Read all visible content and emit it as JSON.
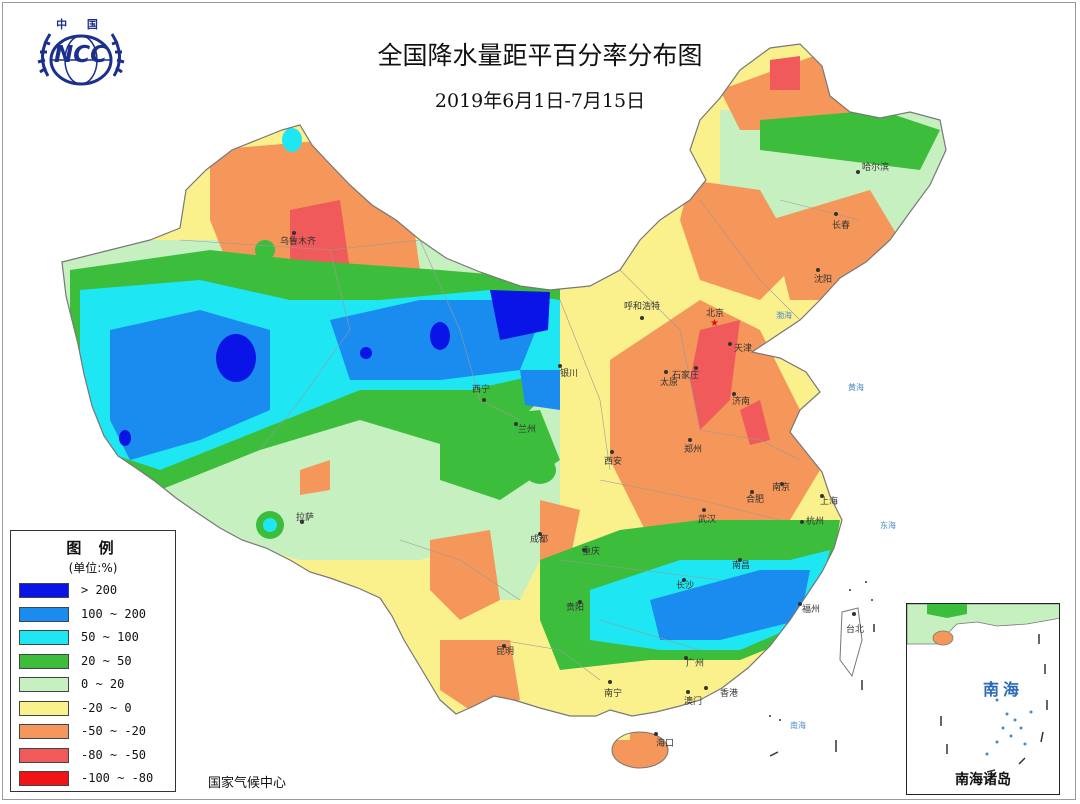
{
  "header": {
    "logo_top": "中 国",
    "logo_text": "NCC",
    "title": "全国降水量距平百分率分布图",
    "subtitle": "2019年6月1日-7月15日"
  },
  "legend": {
    "title": "图 例",
    "unit": "(单位:%)",
    "items": [
      {
        "label": "> 200",
        "color": "#0a14e6"
      },
      {
        "label": "100 ~ 200",
        "color": "#1a8cf0"
      },
      {
        "label": "50 ~ 100",
        "color": "#1ee6f2"
      },
      {
        "label": "20 ~ 50",
        "color": "#3cbe3c"
      },
      {
        "label": "0 ~ 20",
        "color": "#c6f0c0"
      },
      {
        "label": "-20 ~ 0",
        "color": "#faf08c"
      },
      {
        "label": "-50 ~ -20",
        "color": "#f5965a"
      },
      {
        "label": "-80 ~ -50",
        "color": "#f05a5a"
      },
      {
        "label": "-100 ~ -80",
        "color": "#f01414"
      }
    ]
  },
  "credit": "国家气候中心",
  "inset": {
    "label": "南海诸岛",
    "sea_label": "南海"
  },
  "cities": [
    {
      "name": "乌鲁木齐"
    },
    {
      "name": "哈尔滨"
    },
    {
      "name": "长春"
    },
    {
      "name": "沈阳"
    },
    {
      "name": "呼和浩特"
    },
    {
      "name": "北京"
    },
    {
      "name": "天津"
    },
    {
      "name": "石家庄"
    },
    {
      "name": "太原"
    },
    {
      "name": "济南"
    },
    {
      "name": "银川"
    },
    {
      "name": "西宁"
    },
    {
      "name": "兰州"
    },
    {
      "name": "西安"
    },
    {
      "name": "郑州"
    },
    {
      "name": "合肥"
    },
    {
      "name": "南京"
    },
    {
      "name": "上海"
    },
    {
      "name": "杭州"
    },
    {
      "name": "武汉"
    },
    {
      "name": "拉萨"
    },
    {
      "name": "成都"
    },
    {
      "name": "重庆"
    },
    {
      "name": "长沙"
    },
    {
      "name": "南昌"
    },
    {
      "name": "福州"
    },
    {
      "name": "贵阳"
    },
    {
      "name": "昆明"
    },
    {
      "name": "南宁"
    },
    {
      "name": "广州"
    },
    {
      "name": "澳门"
    },
    {
      "name": "香港"
    },
    {
      "name": "海口"
    },
    {
      "name": "台北"
    }
  ],
  "sea_labels": [
    {
      "name": "黄海"
    },
    {
      "name": "东海"
    },
    {
      "name": "南海"
    },
    {
      "name": "渤海"
    }
  ]
}
